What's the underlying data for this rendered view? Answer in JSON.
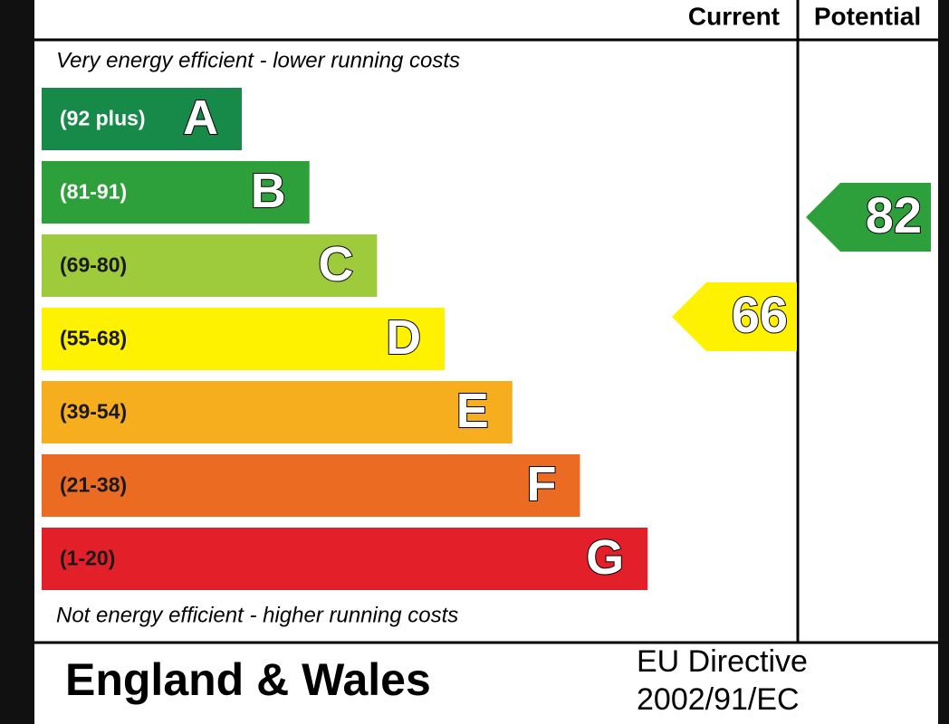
{
  "header": {
    "current": "Current",
    "potential": "Potential"
  },
  "top_note": "Very energy efficient - lower running costs",
  "bottom_note": "Not energy efficient - higher running costs",
  "bands": [
    {
      "range": "(92 plus)",
      "letter": "A",
      "color": "#178a4a",
      "label_color": "#ffffff"
    },
    {
      "range": "(81-91)",
      "letter": "B",
      "color": "#2ea03b",
      "label_color": "#ffffff"
    },
    {
      "range": "(69-80)",
      "letter": "C",
      "color": "#9dcb3c",
      "label_color": "#1a1a1a"
    },
    {
      "range": "(55-68)",
      "letter": "D",
      "color": "#fff200",
      "label_color": "#1a1a1a"
    },
    {
      "range": "(39-54)",
      "letter": "E",
      "color": "#f6ae1f",
      "label_color": "#1a1a1a"
    },
    {
      "range": "(21-38)",
      "letter": "F",
      "color": "#ec6b23",
      "label_color": "#1a1a1a"
    },
    {
      "range": "(1-20)",
      "letter": "G",
      "color": "#e3202a",
      "label_color": "#1a1a1a"
    }
  ],
  "ratings": {
    "current": 66,
    "potential": 82
  },
  "footer": {
    "region": "England & Wales",
    "directive_line1": "EU Directive",
    "directive_line2": "2002/91/EC"
  }
}
